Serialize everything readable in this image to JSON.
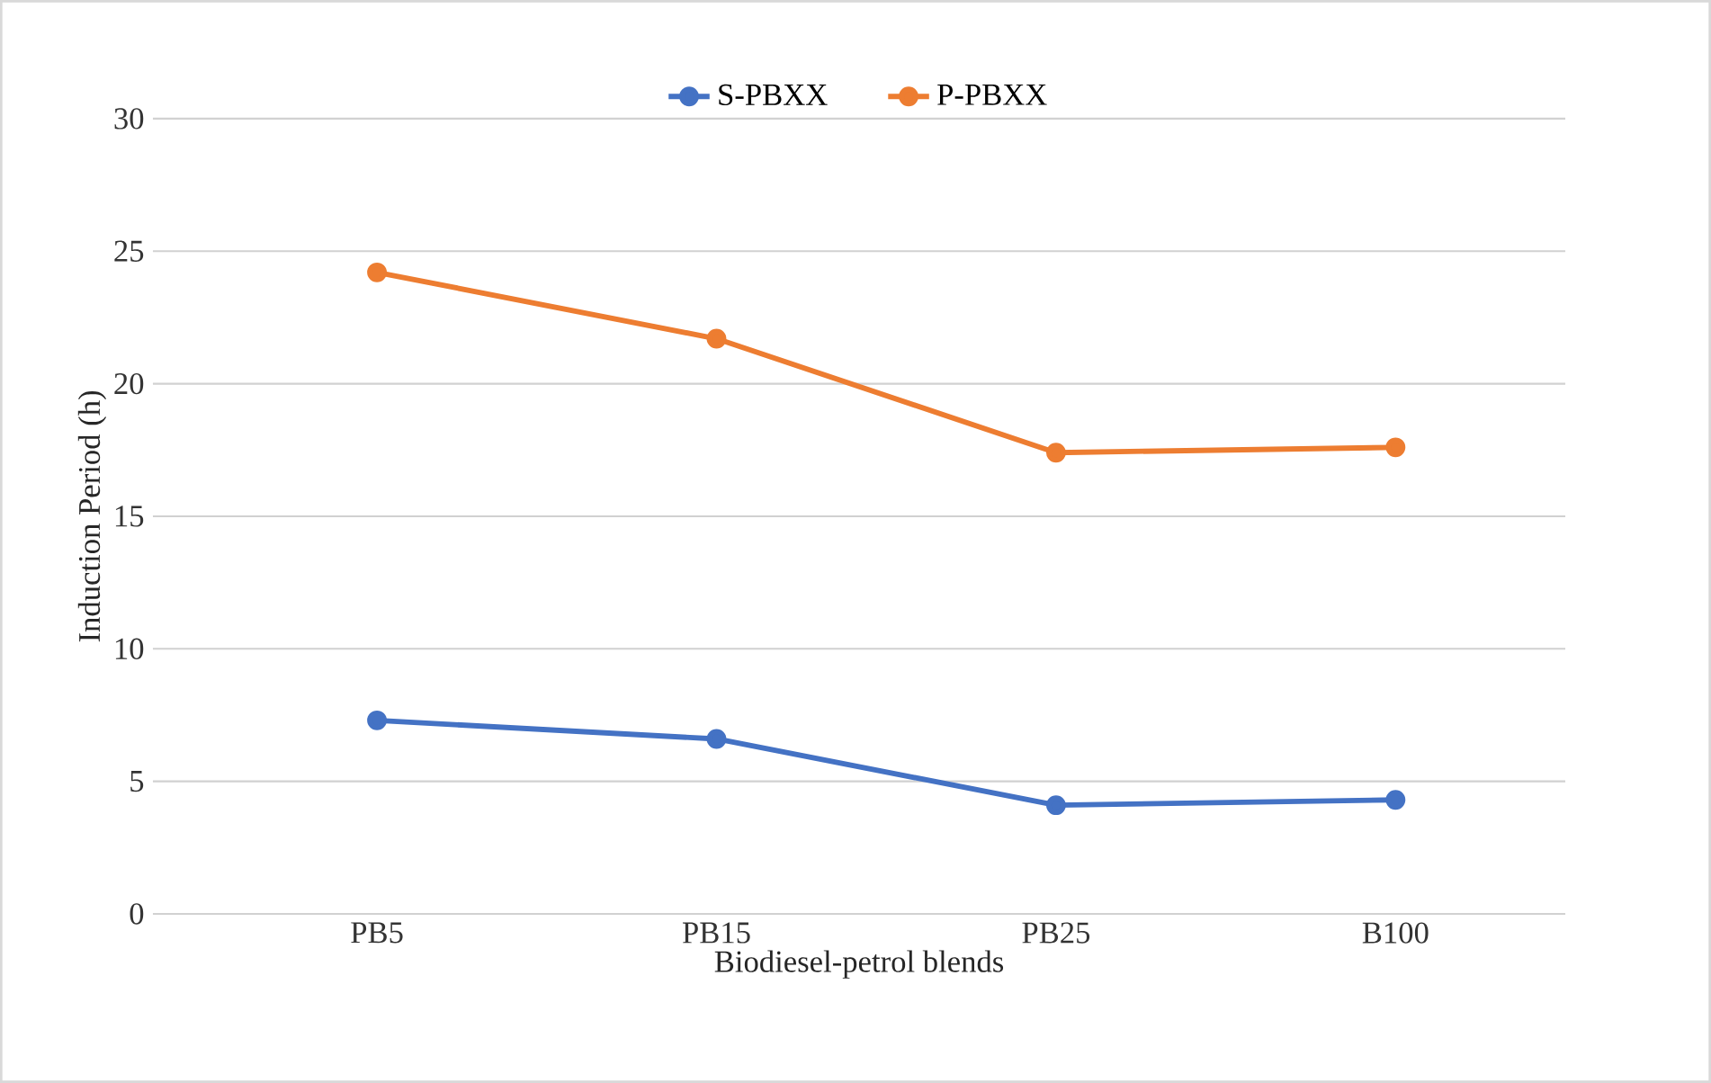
{
  "chart_data": {
    "type": "line",
    "xlabel": "Biodiesel-petrol blends",
    "ylabel": "Induction Period (h)",
    "categories": [
      "PB5",
      "PB15",
      "PB25",
      "B100"
    ],
    "series": [
      {
        "name": "S-PBXX",
        "color": "#4472c4",
        "values": [
          7.3,
          6.6,
          4.1,
          4.3
        ]
      },
      {
        "name": "P-PBXX",
        "color": "#ed7d31",
        "values": [
          24.2,
          21.7,
          17.4,
          17.6
        ]
      }
    ],
    "ylim": [
      0,
      30
    ],
    "yticks": [
      0,
      5,
      10,
      15,
      20,
      25,
      30
    ],
    "grid": "y",
    "legend": "top",
    "marker": "circle",
    "line_style": "solid"
  }
}
